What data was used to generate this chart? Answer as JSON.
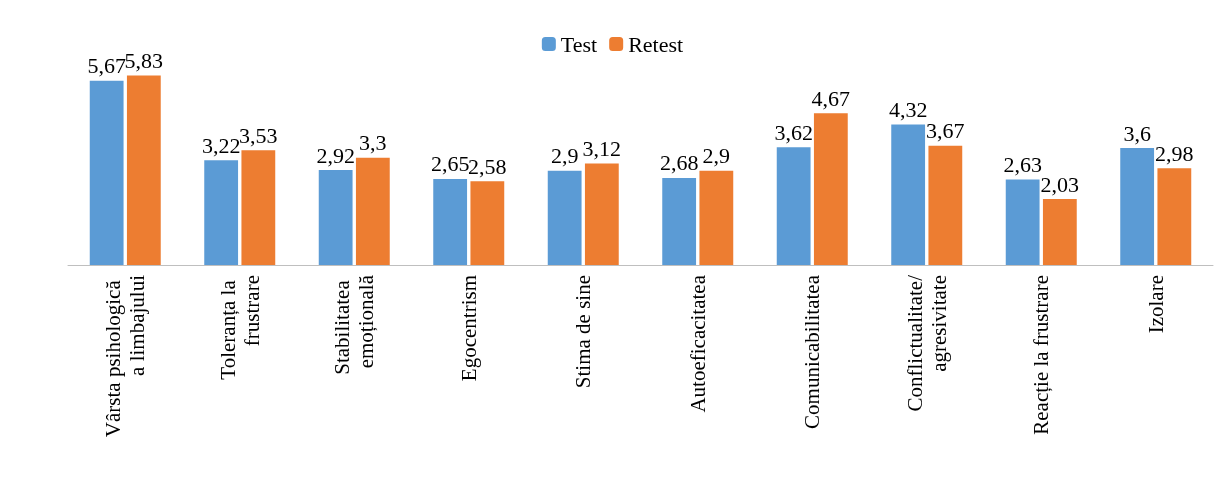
{
  "chart_data": {
    "type": "bar",
    "categories": [
      "Vârsta psihologică a limbajului",
      "Toleranța la frustrare",
      "Stabilitatea emoțională",
      "Egocentrism",
      "Stima de sine",
      "Autoeficacitatea",
      "Comunicabilitatea",
      "Conflictualitate/agresivitate",
      "Reacție la frustrare",
      "Izolare"
    ],
    "series": [
      {
        "name": "Test",
        "color": "#5b9bd5",
        "values": [
          5.67,
          3.22,
          2.92,
          2.65,
          2.9,
          2.68,
          3.62,
          4.32,
          2.63,
          3.6
        ],
        "value_labels": [
          "5,67",
          "3,22",
          "2,92",
          "2,65",
          "2,9",
          "2,68",
          "3,62",
          "4,32",
          "2,63",
          "3,6"
        ]
      },
      {
        "name": "Retest",
        "color": "#ed7d31",
        "values": [
          5.83,
          3.53,
          3.3,
          2.58,
          3.12,
          2.9,
          4.67,
          3.67,
          2.03,
          2.98
        ],
        "value_labels": [
          "5,83",
          "3,53",
          "3,3",
          "2,58",
          "3,12",
          "2,9",
          "4,67",
          "3,67",
          "2,03",
          "2,98"
        ]
      }
    ],
    "legend": "top",
    "grid": false,
    "tick_labels": "x"
  }
}
